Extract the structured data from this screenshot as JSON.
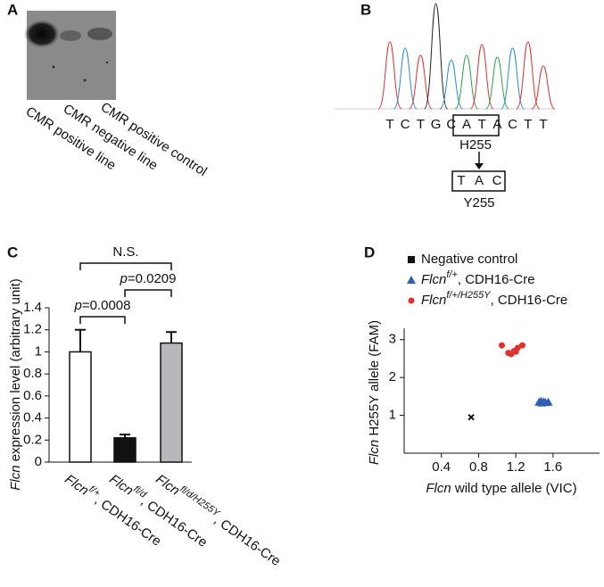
{
  "panels": [
    {
      "label": "A",
      "lanes": [
        "CMR positive line",
        "CMR negative line",
        "CMR positive control"
      ]
    },
    {
      "label": "B",
      "sequence": [
        "T",
        "C",
        "T",
        "G",
        "C",
        "A",
        "T",
        "A",
        "C",
        "T",
        "T"
      ],
      "base_colors": {
        "T": "#e03030",
        "C": "#2a8ad0",
        "A": "#2aa34a",
        "G": "#222222"
      },
      "original_codon": "H255",
      "mutant_codon_bases": [
        "T",
        "A",
        "C"
      ],
      "mutant_codon": "Y255"
    }
  ],
  "chart_data": [
    {
      "type": "bar",
      "panel_label": "C",
      "ylabel": {
        "gene": "Flcn",
        "text": " expression level (arbitrary unit)"
      },
      "categories": [
        {
          "gene": "Flcn",
          "allele": "f/+",
          "suffix": ", CDH16-Cre"
        },
        {
          "gene": "Flcn",
          "allele": "fl/d",
          "suffix": ", CDH16-Cre"
        },
        {
          "gene": "Flcn",
          "allele": "fl/d/H255Y",
          "suffix": ", CDH16-Cre"
        }
      ],
      "values": [
        1.0,
        0.22,
        1.08
      ],
      "errors": [
        0.2,
        0.03,
        0.1
      ],
      "colors": [
        "#ffffff",
        "#111111",
        "#b8b8bc"
      ],
      "ylim": [
        0,
        1.4
      ],
      "yticks": [
        0,
        0.2,
        0.4,
        0.6,
        0.8,
        1,
        1.2,
        1.4
      ],
      "annotations": [
        {
          "from": 0,
          "to": 2,
          "text": "N.S."
        },
        {
          "from": 1,
          "to": 2,
          "italic": "p",
          "text": "=0.0209"
        },
        {
          "from": 0,
          "to": 1,
          "italic": "p",
          "text": "=0.0008"
        }
      ]
    },
    {
      "type": "scatter",
      "panel_label": "D",
      "xlabel": {
        "gene": "Flcn",
        "text": " wild type allele (VIC)"
      },
      "ylabel": {
        "gene": "Flcn",
        "text": " H255Y allele (FAM)"
      },
      "xlim": [
        0,
        2.1
      ],
      "ylim": [
        0,
        3.3
      ],
      "xticks": [
        0.4,
        0.8,
        1.2,
        1.6
      ],
      "yticks": [
        1,
        2,
        3
      ],
      "series": [
        {
          "name": {
            "text": "Negative control"
          },
          "color": "#111111",
          "marker": "x",
          "x": [
            0.72
          ],
          "values": [
            0.95
          ]
        },
        {
          "name": {
            "gene": "Flcn",
            "allele": "f/+",
            "suffix": ", CDH16-Cre"
          },
          "color": "#2e5fb0",
          "marker": "triangle",
          "x": [
            1.45,
            1.48,
            1.5,
            1.52,
            1.55,
            1.47
          ],
          "values": [
            1.35,
            1.33,
            1.36,
            1.34,
            1.35,
            1.38
          ]
        },
        {
          "name": {
            "gene": "Flcn",
            "allele": "f/+/H255Y",
            "suffix": ", CDH16-Cre"
          },
          "color": "#e03030",
          "marker": "circle",
          "x": [
            1.05,
            1.12,
            1.15,
            1.18,
            1.22,
            1.27,
            1.2
          ],
          "values": [
            2.85,
            2.65,
            2.62,
            2.7,
            2.78,
            2.85,
            2.68
          ]
        }
      ]
    }
  ]
}
